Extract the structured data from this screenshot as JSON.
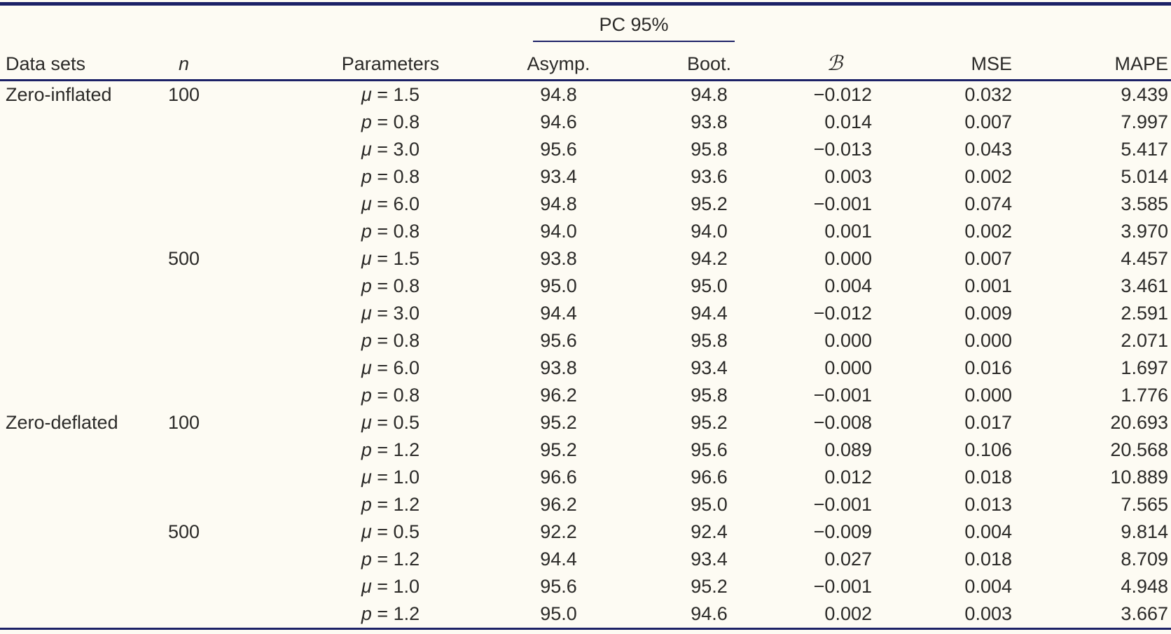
{
  "styles": {
    "background": "#fdfbf3",
    "rule_color": "#1c2166",
    "text_color": "#2b2a28"
  },
  "table": {
    "spanner": {
      "label": "PC 95%"
    },
    "headers": {
      "data_sets": "Data sets",
      "n": "n",
      "parameters": "Parameters",
      "asymp": "Asymp.",
      "boot": "Boot.",
      "bias": "ℬ",
      "mse": "MSE",
      "mape": "MAPE"
    },
    "groups": [
      {
        "label": "Zero-inflated",
        "subgroups": [
          {
            "n": "100",
            "rows": [
              {
                "param": "μ",
                "value": "1.5",
                "asymp": "94.8",
                "boot": "94.8",
                "bias": "−0.012",
                "mse": "0.032",
                "mape": "9.439"
              },
              {
                "param": "p",
                "value": "0.8",
                "asymp": "94.6",
                "boot": "93.8",
                "bias": "0.014",
                "mse": "0.007",
                "mape": "7.997"
              },
              {
                "param": "μ",
                "value": "3.0",
                "asymp": "95.6",
                "boot": "95.8",
                "bias": "−0.013",
                "mse": "0.043",
                "mape": "5.417"
              },
              {
                "param": "p",
                "value": "0.8",
                "asymp": "93.4",
                "boot": "93.6",
                "bias": "0.003",
                "mse": "0.002",
                "mape": "5.014"
              },
              {
                "param": "μ",
                "value": "6.0",
                "asymp": "94.8",
                "boot": "95.2",
                "bias": "−0.001",
                "mse": "0.074",
                "mape": "3.585"
              },
              {
                "param": "p",
                "value": "0.8",
                "asymp": "94.0",
                "boot": "94.0",
                "bias": "0.001",
                "mse": "0.002",
                "mape": "3.970"
              }
            ]
          },
          {
            "n": "500",
            "rows": [
              {
                "param": "μ",
                "value": "1.5",
                "asymp": "93.8",
                "boot": "94.2",
                "bias": "0.000",
                "mse": "0.007",
                "mape": "4.457"
              },
              {
                "param": "p",
                "value": "0.8",
                "asymp": "95.0",
                "boot": "95.0",
                "bias": "0.004",
                "mse": "0.001",
                "mape": "3.461"
              },
              {
                "param": "μ",
                "value": "3.0",
                "asymp": "94.4",
                "boot": "94.4",
                "bias": "−0.012",
                "mse": "0.009",
                "mape": "2.591"
              },
              {
                "param": "p",
                "value": "0.8",
                "asymp": "95.6",
                "boot": "95.8",
                "bias": "0.000",
                "mse": "0.000",
                "mape": "2.071"
              },
              {
                "param": "μ",
                "value": "6.0",
                "asymp": "93.8",
                "boot": "93.4",
                "bias": "0.000",
                "mse": "0.016",
                "mape": "1.697"
              },
              {
                "param": "p",
                "value": "0.8",
                "asymp": "96.2",
                "boot": "95.8",
                "bias": "−0.001",
                "mse": "0.000",
                "mape": "1.776"
              }
            ]
          }
        ]
      },
      {
        "label": "Zero-deflated",
        "subgroups": [
          {
            "n": "100",
            "rows": [
              {
                "param": "μ",
                "value": "0.5",
                "asymp": "95.2",
                "boot": "95.2",
                "bias": "−0.008",
                "mse": "0.017",
                "mape": "20.693"
              },
              {
                "param": "p",
                "value": "1.2",
                "asymp": "95.2",
                "boot": "95.6",
                "bias": "0.089",
                "mse": "0.106",
                "mape": "20.568"
              },
              {
                "param": "μ",
                "value": "1.0",
                "asymp": "96.6",
                "boot": "96.6",
                "bias": "0.012",
                "mse": "0.018",
                "mape": "10.889"
              },
              {
                "param": "p",
                "value": "1.2",
                "asymp": "96.2",
                "boot": "95.0",
                "bias": "−0.001",
                "mse": "0.013",
                "mape": "7.565"
              }
            ]
          },
          {
            "n": "500",
            "rows": [
              {
                "param": "μ",
                "value": "0.5",
                "asymp": "92.2",
                "boot": "92.4",
                "bias": "−0.009",
                "mse": "0.004",
                "mape": "9.814"
              },
              {
                "param": "p",
                "value": "1.2",
                "asymp": "94.4",
                "boot": "93.4",
                "bias": "0.027",
                "mse": "0.018",
                "mape": "8.709"
              },
              {
                "param": "μ",
                "value": "1.0",
                "asymp": "95.6",
                "boot": "95.2",
                "bias": "−0.001",
                "mse": "0.004",
                "mape": "4.948"
              },
              {
                "param": "p",
                "value": "1.2",
                "asymp": "95.0",
                "boot": "94.6",
                "bias": "0.002",
                "mse": "0.003",
                "mape": "3.667"
              }
            ]
          }
        ]
      }
    ]
  }
}
